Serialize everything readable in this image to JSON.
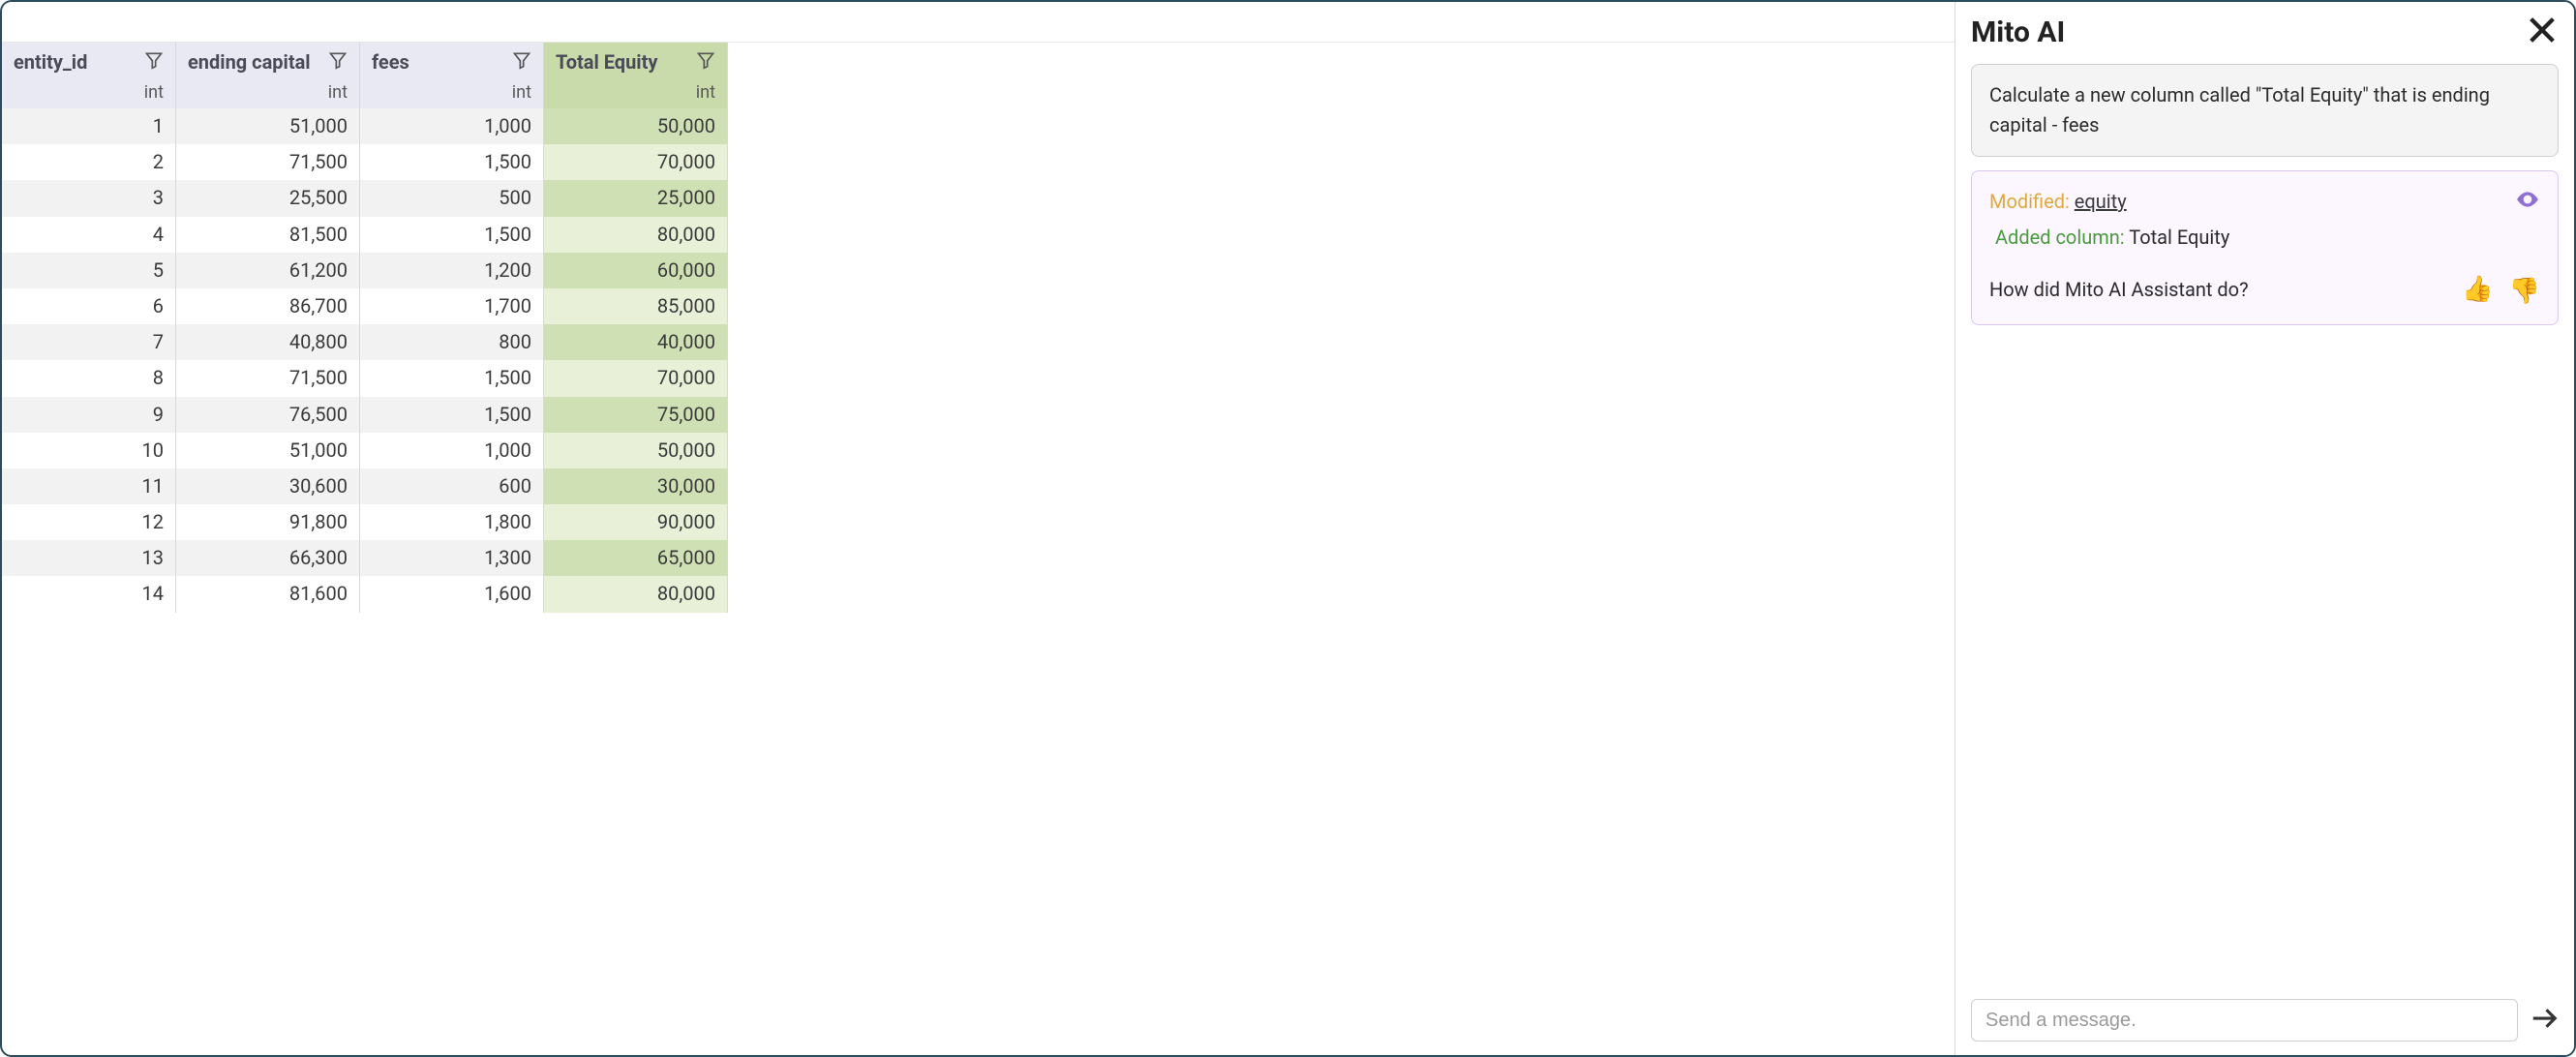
{
  "panel": {
    "title": "Mito AI",
    "prompt": "Calculate a new column called \"Total Equity\" that is ending capital - fees",
    "modified_label": "Modified:",
    "modified_target": "equity",
    "added_label": "Added column:",
    "added_target": "Total Equity",
    "feedback_question": "How did Mito AI Assistant do?",
    "input_placeholder": "Send a message."
  },
  "table": {
    "columns": [
      {
        "name": "entity_id",
        "dtype": "int",
        "highlight": false,
        "width": 180
      },
      {
        "name": "ending capital",
        "dtype": "int",
        "highlight": false,
        "width": 190
      },
      {
        "name": "fees",
        "dtype": "int",
        "highlight": false,
        "width": 190
      },
      {
        "name": "Total Equity",
        "dtype": "int",
        "highlight": true,
        "width": 190
      }
    ],
    "rows": [
      [
        "1",
        "51,000",
        "1,000",
        "50,000"
      ],
      [
        "2",
        "71,500",
        "1,500",
        "70,000"
      ],
      [
        "3",
        "25,500",
        "500",
        "25,000"
      ],
      [
        "4",
        "81,500",
        "1,500",
        "80,000"
      ],
      [
        "5",
        "61,200",
        "1,200",
        "60,000"
      ],
      [
        "6",
        "86,700",
        "1,700",
        "85,000"
      ],
      [
        "7",
        "40,800",
        "800",
        "40,000"
      ],
      [
        "8",
        "71,500",
        "1,500",
        "70,000"
      ],
      [
        "9",
        "76,500",
        "1,500",
        "75,000"
      ],
      [
        "10",
        "51,000",
        "1,000",
        "50,000"
      ],
      [
        "11",
        "30,600",
        "600",
        "30,000"
      ],
      [
        "12",
        "91,800",
        "1,800",
        "90,000"
      ],
      [
        "13",
        "66,300",
        "1,300",
        "65,000"
      ],
      [
        "14",
        "81,600",
        "1,600",
        "80,000"
      ]
    ]
  },
  "colors": {
    "header_normal_bg": "#e8e9f3",
    "header_highlight_bg": "#c9dbaa",
    "row_even_normal": "#ffffff",
    "row_odd_normal": "#f2f2f2",
    "row_even_highlight": "#e8f0d8",
    "row_odd_highlight": "#cfe0b4",
    "modified_color": "#e0a93a",
    "added_color": "#4a9b3d",
    "eye_color": "#8f6fd6",
    "border_outer": "#2b4c5c"
  }
}
